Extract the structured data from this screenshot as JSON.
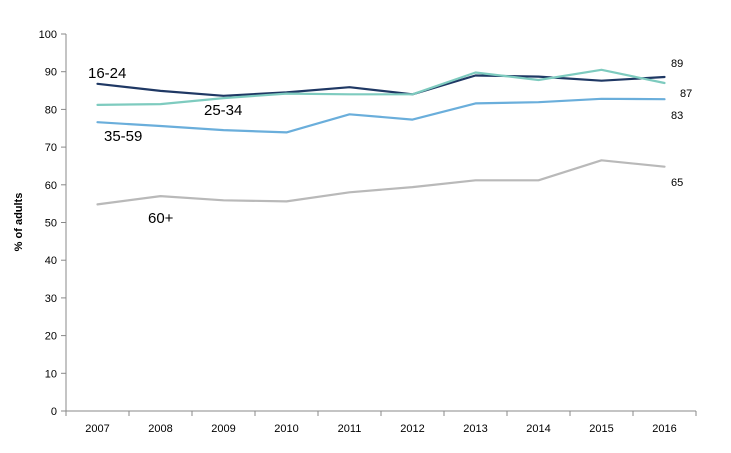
{
  "chart_data": {
    "type": "line",
    "title": "",
    "xlabel": "",
    "ylabel": "% of adults",
    "ylim": [
      0,
      100
    ],
    "yticks": [
      0,
      10,
      20,
      30,
      40,
      50,
      60,
      70,
      80,
      90,
      100
    ],
    "categories": [
      "2007",
      "2008",
      "2009",
      "2010",
      "2011",
      "2012",
      "2013",
      "2014",
      "2015",
      "2016"
    ],
    "grid": false,
    "legend": "none",
    "series": [
      {
        "name": "16-24",
        "color": "#1f3864",
        "values": [
          86.8,
          84.9,
          83.6,
          84.5,
          85.9,
          84.0,
          89.0,
          88.7,
          87.6,
          88.6
        ],
        "end_label": "89"
      },
      {
        "name": "25-34",
        "color": "#7ecbbf",
        "values": [
          81.2,
          81.4,
          83.0,
          84.2,
          84.0,
          84.0,
          89.8,
          87.8,
          90.5,
          87.0
        ],
        "end_label": "87"
      },
      {
        "name": "35-59",
        "color": "#6aaedb",
        "values": [
          76.6,
          75.6,
          74.5,
          73.9,
          78.7,
          77.3,
          81.6,
          81.9,
          82.8,
          82.7
        ],
        "end_label": "83"
      },
      {
        "name": "60+",
        "color": "#b9b9b9",
        "values": [
          54.8,
          57.0,
          55.9,
          55.6,
          58.0,
          59.4,
          61.2,
          61.2,
          66.5,
          64.8
        ],
        "end_label": "65"
      }
    ]
  }
}
